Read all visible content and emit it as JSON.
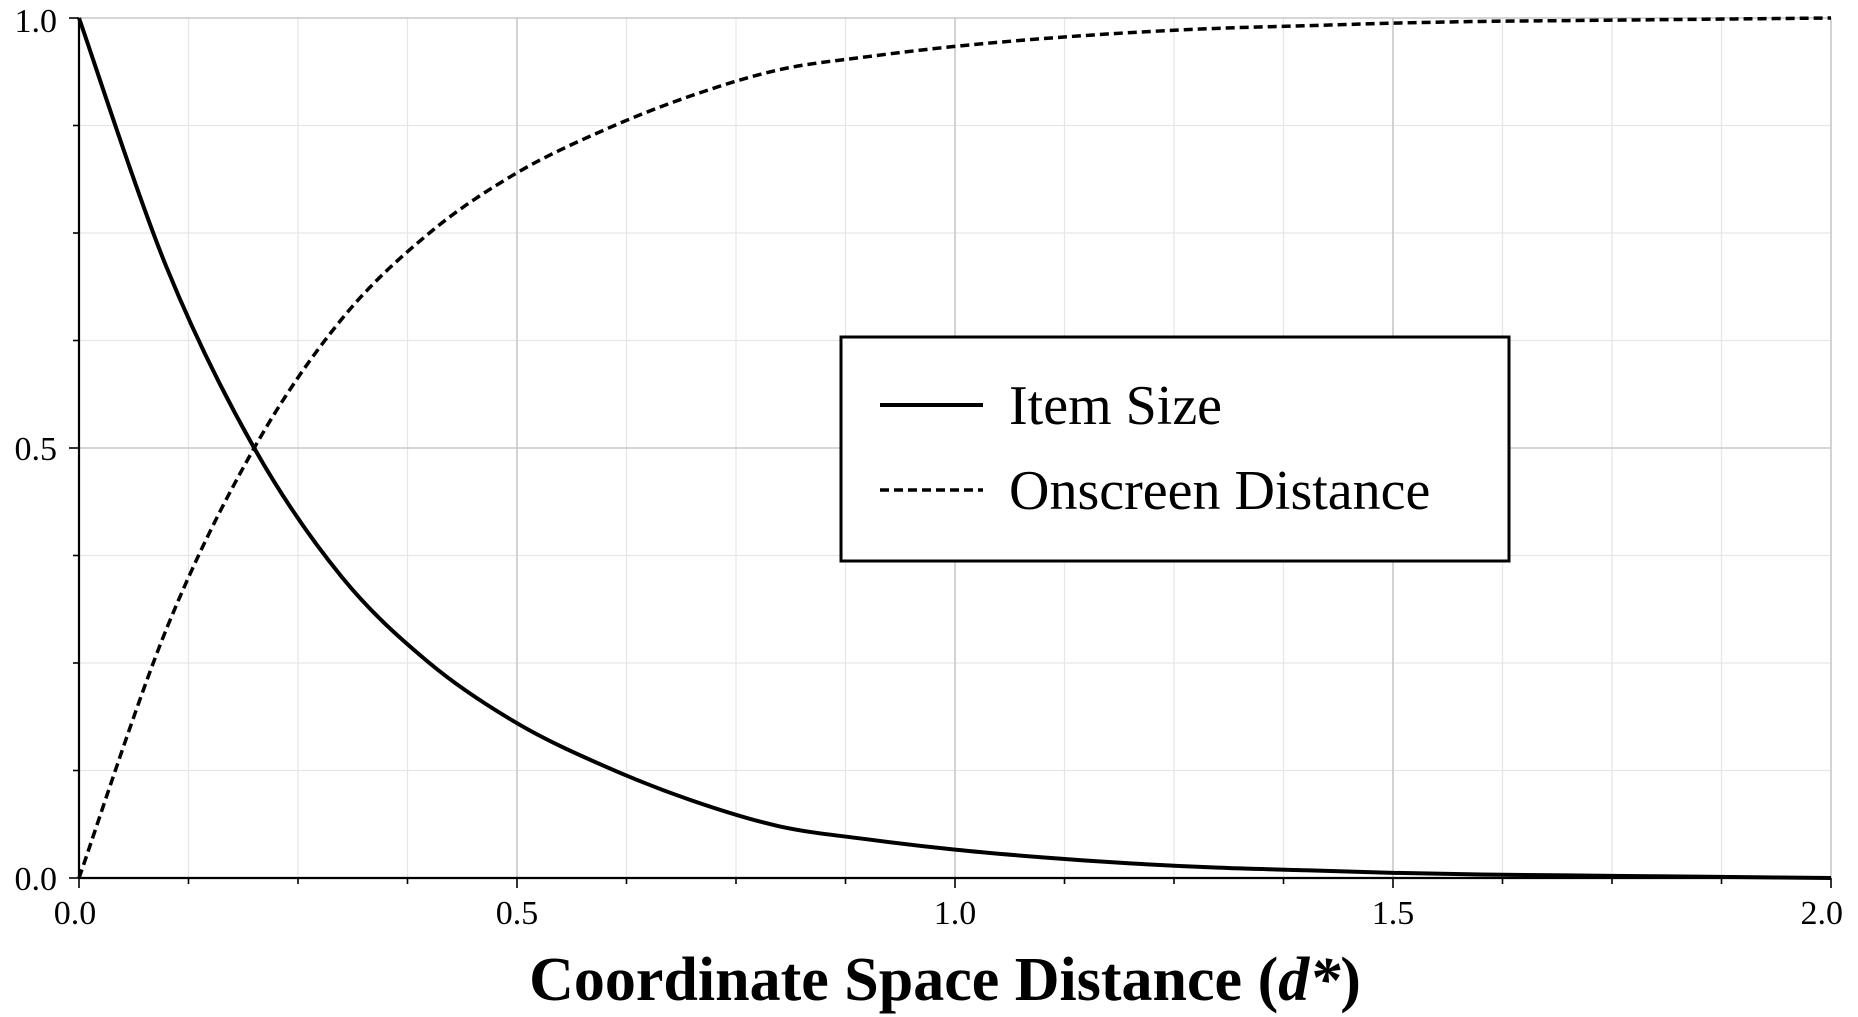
{
  "chart_data": {
    "type": "line",
    "title": "",
    "xlabel": "Coordinate Space Distance (d*)",
    "xlabel_parts": {
      "before": "Coordinate Space Distance (",
      "italic": "d*",
      "after": ")"
    },
    "ylabel": "",
    "xlim": [
      0,
      2
    ],
    "ylim": [
      0,
      1
    ],
    "x_ticks": [
      0,
      0.5,
      1,
      1.5,
      2
    ],
    "x_tick_labels": [
      "0.0",
      "0.5",
      "1.0",
      "1.5",
      "2.0"
    ],
    "y_ticks": [
      0,
      0.5,
      1
    ],
    "y_tick_labels": [
      "0.0",
      "0.5",
      "1.0"
    ],
    "grid": true,
    "legend_position": "center-right",
    "x": [
      0,
      0.1,
      0.2,
      0.3,
      0.4,
      0.5,
      0.6,
      0.7,
      0.8,
      0.9,
      1.0,
      1.1,
      1.2,
      1.3,
      1.4,
      1.5,
      1.6,
      1.7,
      1.8,
      1.9,
      2.0
    ],
    "series": [
      {
        "name": "Item Size",
        "style": "solid",
        "color": "#000000",
        "values": [
          1.0,
          0.71,
          0.5,
          0.35,
          0.25,
          0.18,
          0.13,
          0.09,
          0.06,
          0.045,
          0.033,
          0.024,
          0.017,
          0.012,
          0.009,
          0.006,
          0.004,
          0.003,
          0.002,
          0.001,
          0.0
        ]
      },
      {
        "name": "Onscreen Distance",
        "style": "dashed",
        "color": "#000000",
        "values": [
          0.0,
          0.29,
          0.5,
          0.65,
          0.75,
          0.82,
          0.87,
          0.91,
          0.94,
          0.955,
          0.967,
          0.976,
          0.983,
          0.988,
          0.991,
          0.994,
          0.996,
          0.997,
          0.998,
          0.999,
          1.0
        ]
      }
    ]
  }
}
